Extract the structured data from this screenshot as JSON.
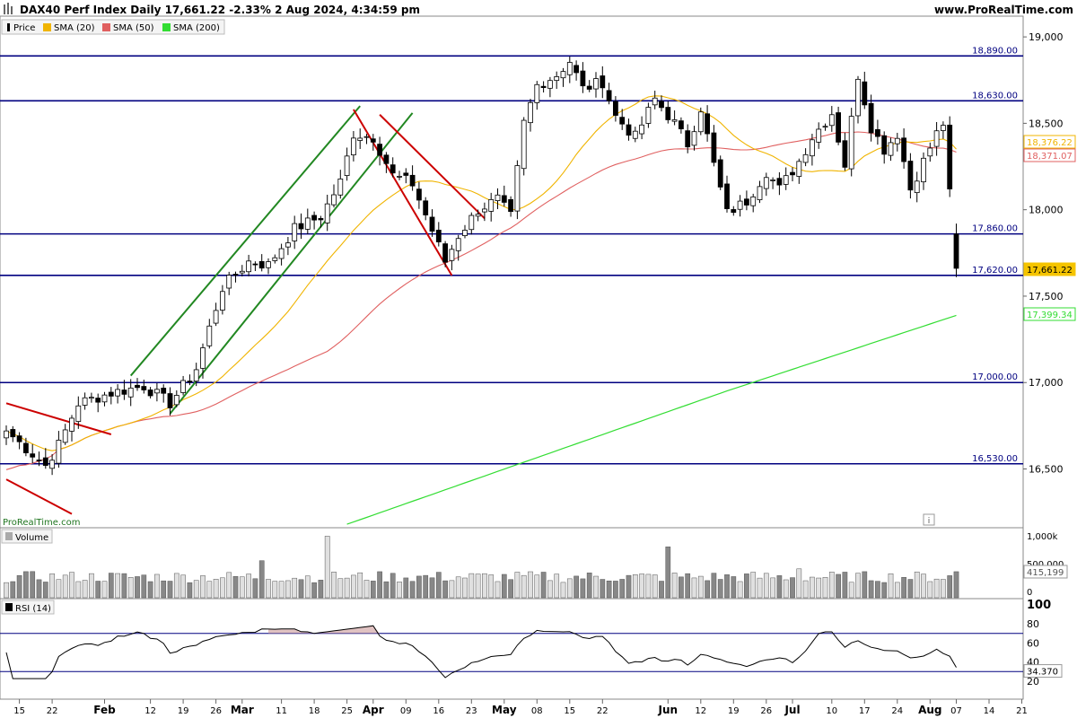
{
  "header": {
    "title": "DAX40 Perf Index Daily 17,661.22 -2.33% 2 Aug 2024, 4:34:59 pm",
    "brand": "www.ProRealTime.com",
    "watermark": "ProRealTime.com",
    "info_glyph": "i"
  },
  "legend": [
    {
      "label": "Price",
      "color": "#000000"
    },
    {
      "label": "SMA (20)",
      "color": "#f0b400"
    },
    {
      "label": "SMA (50)",
      "color": "#e06060"
    },
    {
      "label": "SMA (200)",
      "color": "#33dd33"
    }
  ],
  "volume_label": "Volume",
  "rsi_label": "RSI (14)",
  "chart_data": {
    "type": "candlestick",
    "y_axis": {
      "range": [
        16160,
        19120
      ],
      "ticks": [
        "19,000",
        "18,500",
        "18,000",
        "17,500",
        "17,000",
        "16,500"
      ],
      "tick_values": [
        19000,
        18500,
        18000,
        17500,
        17000,
        16500
      ]
    },
    "x_axis": {
      "ticks": [
        {
          "label": "15",
          "i": 2
        },
        {
          "label": "22",
          "i": 7
        },
        {
          "label": "Feb",
          "i": 15
        },
        {
          "label": "12",
          "i": 22
        },
        {
          "label": "19",
          "i": 27
        },
        {
          "label": "26",
          "i": 32
        },
        {
          "label": "Mar",
          "i": 36
        },
        {
          "label": "11",
          "i": 42
        },
        {
          "label": "18",
          "i": 47
        },
        {
          "label": "25",
          "i": 52
        },
        {
          "label": "Apr",
          "i": 56
        },
        {
          "label": "09",
          "i": 61
        },
        {
          "label": "16",
          "i": 66
        },
        {
          "label": "23",
          "i": 71
        },
        {
          "label": "May",
          "i": 76
        },
        {
          "label": "08",
          "i": 81
        },
        {
          "label": "15",
          "i": 86
        },
        {
          "label": "22",
          "i": 91
        },
        {
          "label": "Jun",
          "i": 101
        },
        {
          "label": "12",
          "i": 106
        },
        {
          "label": "19",
          "i": 111
        },
        {
          "label": "26",
          "i": 116
        },
        {
          "label": "Jul",
          "i": 120
        },
        {
          "label": "10",
          "i": 126
        },
        {
          "label": "17",
          "i": 131
        },
        {
          "label": "24",
          "i": 136
        },
        {
          "label": "Aug",
          "i": 141
        },
        {
          "label": "07",
          "i": 145
        },
        {
          "label": "14",
          "i": 150
        },
        {
          "label": "21",
          "i": 155
        }
      ]
    },
    "horizontal_levels": [
      {
        "value": 18890,
        "label": "18,890.00"
      },
      {
        "value": 18630,
        "label": "18,630.00"
      },
      {
        "value": 17860,
        "label": "17,860.00"
      },
      {
        "value": 17620,
        "label": "17,620.00"
      },
      {
        "value": 17000,
        "label": "17,000.00"
      },
      {
        "value": 16530,
        "label": "16,530.00"
      }
    ],
    "price_tags": [
      {
        "value": 18376.22,
        "label": "18,376.22",
        "color": "#f0b400",
        "filled": false
      },
      {
        "value": 18371.07,
        "label": "18,371.07",
        "color": "#e06060",
        "filled": false
      },
      {
        "value": 17661.22,
        "label": "17,661.22",
        "color": "#f5c400",
        "filled": true
      },
      {
        "value": 17399.34,
        "label": "17,399.34",
        "color": "#33dd33",
        "filled": false
      }
    ],
    "trendlines": [
      {
        "color": "#cc0000",
        "from": [
          0,
          16880
        ],
        "to": [
          16,
          16700
        ]
      },
      {
        "color": "#cc0000",
        "from": [
          0,
          16440
        ],
        "to": [
          10,
          16240
        ]
      },
      {
        "color": "#228822",
        "from": [
          19,
          17040
        ],
        "to": [
          54,
          18600
        ]
      },
      {
        "color": "#228822",
        "from": [
          25,
          16820
        ],
        "to": [
          62,
          18560
        ]
      },
      {
        "color": "#cc0000",
        "from": [
          53,
          18580
        ],
        "to": [
          68,
          17620
        ]
      },
      {
        "color": "#cc0000",
        "from": [
          57,
          18550
        ],
        "to": [
          73,
          17950
        ]
      }
    ],
    "anchors": [
      {
        "i": 0,
        "c": 16720
      },
      {
        "i": 6,
        "c": 16520
      },
      {
        "i": 8,
        "c": 16640
      },
      {
        "i": 11,
        "c": 16880
      },
      {
        "i": 16,
        "c": 16940
      },
      {
        "i": 21,
        "c": 16980
      },
      {
        "i": 25,
        "c": 16880
      },
      {
        "i": 29,
        "c": 17080
      },
      {
        "i": 33,
        "c": 17550
      },
      {
        "i": 37,
        "c": 17700
      },
      {
        "i": 40,
        "c": 17680
      },
      {
        "i": 44,
        "c": 17890
      },
      {
        "i": 48,
        "c": 17960
      },
      {
        "i": 51,
        "c": 18160
      },
      {
        "i": 53,
        "c": 18440
      },
      {
        "i": 56,
        "c": 18420
      },
      {
        "i": 59,
        "c": 18200
      },
      {
        "i": 62,
        "c": 18150
      },
      {
        "i": 65,
        "c": 17880
      },
      {
        "i": 67,
        "c": 17700
      },
      {
        "i": 69,
        "c": 17850
      },
      {
        "i": 72,
        "c": 18000
      },
      {
        "i": 75,
        "c": 18060
      },
      {
        "i": 77,
        "c": 17960
      },
      {
        "i": 79,
        "c": 18500
      },
      {
        "i": 81,
        "c": 18720
      },
      {
        "i": 84,
        "c": 18780
      },
      {
        "i": 86,
        "c": 18860
      },
      {
        "i": 88,
        "c": 18700
      },
      {
        "i": 91,
        "c": 18740
      },
      {
        "i": 93,
        "c": 18540
      },
      {
        "i": 96,
        "c": 18420
      },
      {
        "i": 99,
        "c": 18640
      },
      {
        "i": 102,
        "c": 18500
      },
      {
        "i": 104,
        "c": 18380
      },
      {
        "i": 106,
        "c": 18590
      },
      {
        "i": 108,
        "c": 18260
      },
      {
        "i": 110,
        "c": 17980
      },
      {
        "i": 113,
        "c": 18050
      },
      {
        "i": 116,
        "c": 18220
      },
      {
        "i": 118,
        "c": 18120
      },
      {
        "i": 121,
        "c": 18280
      },
      {
        "i": 123,
        "c": 18420
      },
      {
        "i": 126,
        "c": 18560
      },
      {
        "i": 128,
        "c": 18260
      },
      {
        "i": 130,
        "c": 18780
      },
      {
        "i": 132,
        "c": 18480
      },
      {
        "i": 134,
        "c": 18350
      },
      {
        "i": 136,
        "c": 18440
      },
      {
        "i": 138,
        "c": 18120
      },
      {
        "i": 140,
        "c": 18280
      },
      {
        "i": 142,
        "c": 18440
      },
      {
        "i": 143,
        "c": 18500
      },
      {
        "i": 144,
        "c": 18090
      },
      {
        "i": 145,
        "c": 17661
      }
    ],
    "volume": {
      "axis_ticks": [
        "1,000k",
        "500,000",
        "0"
      ],
      "range_k": [
        0,
        1000
      ],
      "last_label": "415,199",
      "spikes": [
        {
          "i": 49,
          "v": 980
        },
        {
          "i": 39,
          "v": 590
        },
        {
          "i": 101,
          "v": 810
        },
        {
          "i": 121,
          "v": 460
        }
      ]
    },
    "rsi": {
      "axis_ticks": [
        "100",
        "80",
        "60",
        "40",
        "20"
      ],
      "tick_values": [
        100,
        80,
        60,
        40,
        20
      ],
      "overbought": 70,
      "oversold": 30,
      "last_label": "34.370",
      "last_value": 34.37
    }
  }
}
